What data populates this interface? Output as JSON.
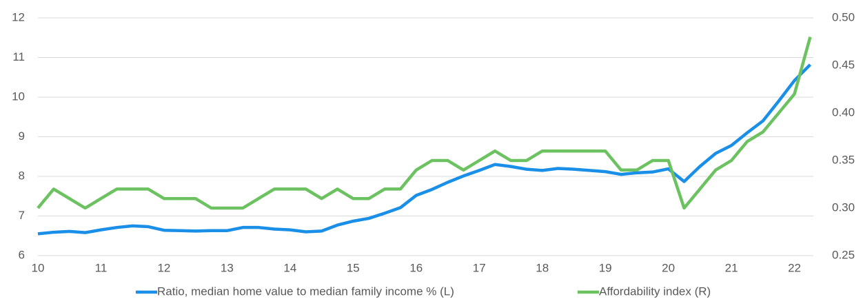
{
  "chart_data": {
    "type": "line",
    "x": [
      10,
      10.25,
      10.5,
      10.75,
      11,
      11.25,
      11.5,
      11.75,
      12,
      12.25,
      12.5,
      12.75,
      13,
      13.25,
      13.5,
      13.75,
      14,
      14.25,
      14.5,
      14.75,
      15,
      15.25,
      15.5,
      15.75,
      16,
      16.25,
      16.5,
      16.75,
      17,
      17.25,
      17.5,
      17.75,
      18,
      18.25,
      18.5,
      18.75,
      19,
      19.25,
      19.5,
      19.75,
      20,
      20.25,
      20.5,
      20.75,
      21,
      21.25,
      21.5,
      21.75,
      22,
      22.25
    ],
    "xlim": [
      10,
      22.3
    ],
    "xticks": [
      10,
      11,
      12,
      13,
      14,
      15,
      16,
      17,
      18,
      19,
      20,
      21,
      22
    ],
    "ylim": [
      6,
      12
    ],
    "yticks": [
      6,
      7,
      8,
      9,
      10,
      11,
      12
    ],
    "y2lim": [
      0.25,
      0.5
    ],
    "y2ticks": [
      0.25,
      {
        "value": 0.3,
        "label": "0.30"
      },
      0.35,
      {
        "value": 0.4,
        "label": "0.40"
      },
      0.45,
      {
        "value": 0.5,
        "label": "0.50"
      }
    ],
    "grid": true,
    "legend": "bottom",
    "series": [
      {
        "name": "Ratio, median home value to median family income % (L)",
        "color": "#1a8fe8",
        "axis": "y",
        "values": [
          6.55,
          6.59,
          6.61,
          6.58,
          6.65,
          6.71,
          6.75,
          6.73,
          6.64,
          6.63,
          6.62,
          6.63,
          6.63,
          6.71,
          6.71,
          6.67,
          6.65,
          6.6,
          6.62,
          6.77,
          6.87,
          6.94,
          7.07,
          7.21,
          7.52,
          7.67,
          7.85,
          8.01,
          8.15,
          8.3,
          8.25,
          8.18,
          8.15,
          8.2,
          8.18,
          8.15,
          8.12,
          8.05,
          8.09,
          8.11,
          8.19,
          7.87,
          8.25,
          8.58,
          8.78,
          9.1,
          9.4,
          9.9,
          10.42,
          10.82
        ]
      },
      {
        "name": "Affordability index (R)",
        "color": "#6cc160",
        "axis": "y2",
        "values": [
          0.3,
          0.32,
          0.31,
          0.3,
          0.31,
          0.32,
          0.32,
          0.32,
          0.31,
          0.31,
          0.31,
          0.3,
          0.3,
          0.3,
          0.31,
          0.32,
          0.32,
          0.32,
          0.31,
          0.32,
          0.31,
          0.31,
          0.32,
          0.32,
          0.34,
          0.35,
          0.35,
          0.34,
          0.35,
          0.36,
          0.35,
          0.35,
          0.36,
          0.36,
          0.36,
          0.36,
          0.36,
          0.34,
          0.34,
          0.35,
          0.35,
          0.3,
          0.32,
          0.34,
          0.35,
          0.37,
          0.38,
          0.4,
          0.42,
          0.48
        ]
      }
    ]
  }
}
